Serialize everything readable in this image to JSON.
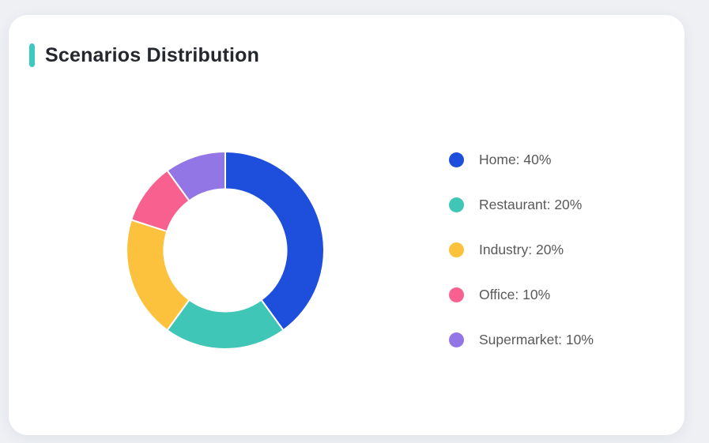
{
  "page": {
    "background_color": "#eef0f4"
  },
  "card": {
    "title": "Scenarios Distribution",
    "accent_color": "#3ec8c4",
    "background_color": "#ffffff"
  },
  "chart_data": {
    "type": "pie",
    "title": "Scenarios Distribution",
    "donut": true,
    "start_angle_deg": 0,
    "direction": "clockwise",
    "legend_position": "right",
    "categories": [
      "Home",
      "Restaurant",
      "Industry",
      "Office",
      "Supermarket"
    ],
    "values": [
      40,
      20,
      20,
      10,
      10
    ],
    "unit": "%",
    "colors": [
      "#1d4edc",
      "#3fc6b7",
      "#fdc23d",
      "#f8618f",
      "#9376e6"
    ],
    "legend_labels": [
      "Home: 40%",
      "Restaurant: 20%",
      "Industry: 20%",
      "Office: 10%",
      "Supermarket: 10%"
    ],
    "slice_border_color": "#ffffff",
    "slice_border_width": 2
  }
}
